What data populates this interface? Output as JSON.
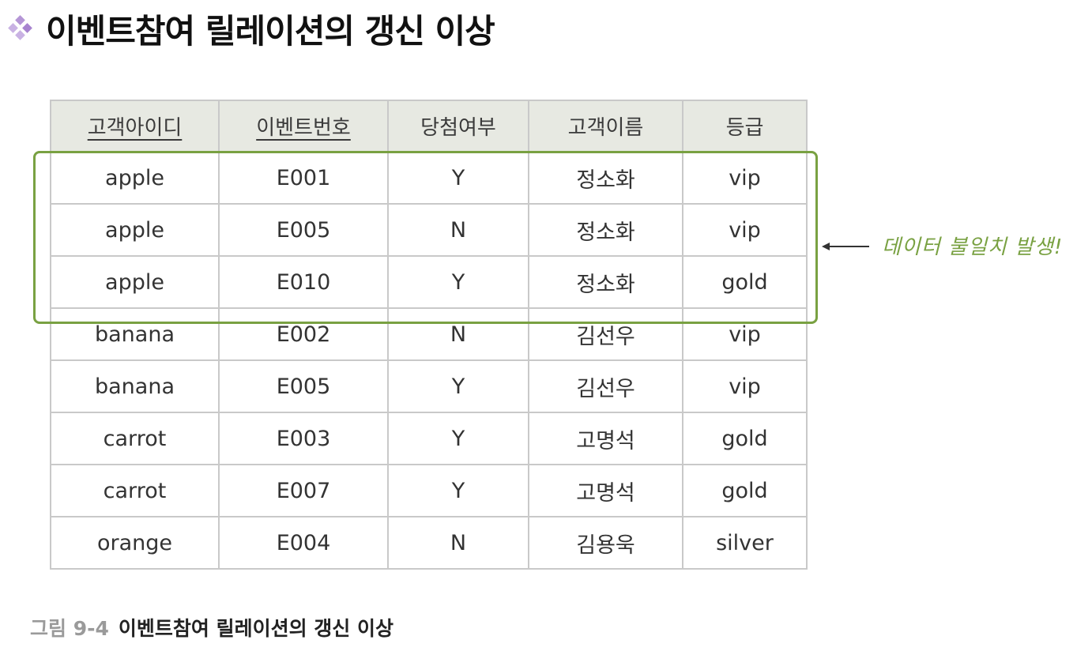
{
  "title": {
    "text": "이벤트참여 릴레이션의 갱신 이상",
    "bullet_icon": "diamond-cluster-icon",
    "bullet_color": "#b596d6"
  },
  "table": {
    "headers": [
      {
        "label": "고객아이디",
        "primary_key": true
      },
      {
        "label": "이벤트번호",
        "primary_key": true
      },
      {
        "label": "당첨여부",
        "primary_key": false
      },
      {
        "label": "고객이름",
        "primary_key": false
      },
      {
        "label": "등급",
        "primary_key": false
      }
    ],
    "rows": [
      [
        "apple",
        "E001",
        "Y",
        "정소화",
        "vip"
      ],
      [
        "apple",
        "E005",
        "N",
        "정소화",
        "vip"
      ],
      [
        "apple",
        "E010",
        "Y",
        "정소화",
        "gold"
      ],
      [
        "banana",
        "E002",
        "N",
        "김선우",
        "vip"
      ],
      [
        "banana",
        "E005",
        "Y",
        "김선우",
        "vip"
      ],
      [
        "carrot",
        "E003",
        "Y",
        "고명석",
        "gold"
      ],
      [
        "carrot",
        "E007",
        "Y",
        "고명석",
        "gold"
      ],
      [
        "orange",
        "E004",
        "N",
        "김용욱",
        "silver"
      ]
    ],
    "header_bg": "#e7e9e2",
    "border_color": "#c9c9c9"
  },
  "highlight": {
    "color": "#79a142",
    "annotation": "데이터 불일치 발생!",
    "arrow_icon": "left-arrow-icon"
  },
  "caption": {
    "label": "그림 9-4",
    "text": "이벤트참여 릴레이션의 갱신 이상"
  }
}
